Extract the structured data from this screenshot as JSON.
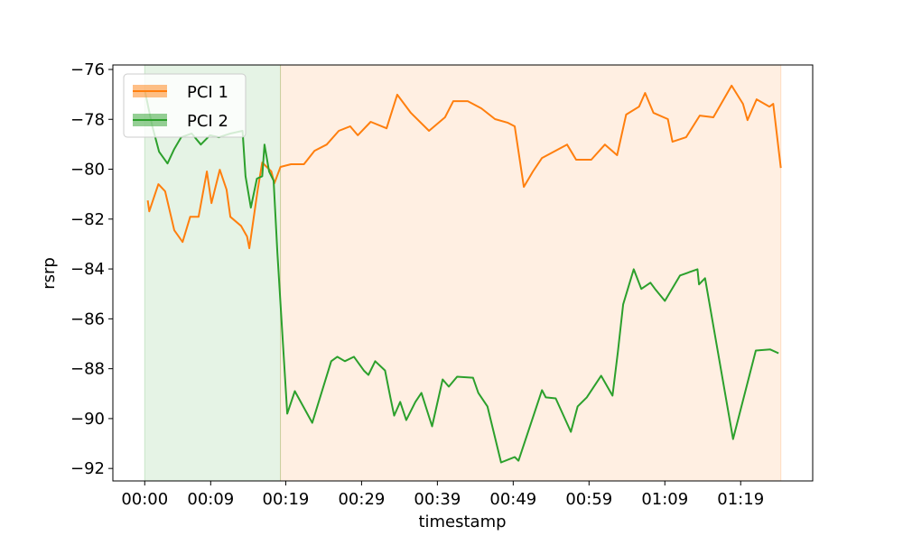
{
  "chart_data": {
    "type": "line",
    "xlabel": "timestamp",
    "ylabel": "rsrp",
    "xlim": [
      -4.2,
      88.1
    ],
    "ylim": [
      -92.5,
      -75.82
    ],
    "xticks": [
      {
        "value": 0,
        "label": "00:00"
      },
      {
        "value": 8.7,
        "label": "00:09"
      },
      {
        "value": 18.6,
        "label": "00:19"
      },
      {
        "value": 28.6,
        "label": "00:29"
      },
      {
        "value": 38.6,
        "label": "00:39"
      },
      {
        "value": 48.6,
        "label": "00:49"
      },
      {
        "value": 58.6,
        "label": "00:59"
      },
      {
        "value": 68.6,
        "label": "01:09"
      },
      {
        "value": 78.6,
        "label": "01:19"
      }
    ],
    "yticks": [
      {
        "value": -76,
        "label": "−76"
      },
      {
        "value": -78,
        "label": "−78"
      },
      {
        "value": -80,
        "label": "−80"
      },
      {
        "value": -82,
        "label": "−82"
      },
      {
        "value": -84,
        "label": "−84"
      },
      {
        "value": -86,
        "label": "−86"
      },
      {
        "value": -88,
        "label": "−88"
      },
      {
        "value": -90,
        "label": "−90"
      },
      {
        "value": -92,
        "label": "−92"
      }
    ],
    "grid": false,
    "legend": "upper left",
    "series": [
      {
        "name": "PCI 1",
        "color": "#ff7f0e",
        "span": [
          17.9,
          83.9
        ],
        "x": [
          0.4,
          0.6,
          1.8,
          2.7,
          3.9,
          5.0,
          6.0,
          7.1,
          8.2,
          8.8,
          9.9,
          10.8,
          11.3,
          12.7,
          13.5,
          13.8,
          14.9,
          15.5,
          16.7,
          17.1,
          17.9,
          19.3,
          21.0,
          22.4,
          24.0,
          25.6,
          27.1,
          28.1,
          29.8,
          31.9,
          33.3,
          35.1,
          37.5,
          39.6,
          40.7,
          42.6,
          44.4,
          46.2,
          47.9,
          48.8,
          50.0,
          51.2,
          52.4,
          55.7,
          56.9,
          58.9,
          60.7,
          62.3,
          63.5,
          65.2,
          66.0,
          67.1,
          69.0,
          69.6,
          71.4,
          73.2,
          75.0,
          77.4,
          78.9,
          79.5,
          80.7,
          82.4,
          82.9,
          83.9
        ],
        "values": [
          -81.25,
          -81.69,
          -80.6,
          -80.89,
          -82.45,
          -82.92,
          -81.91,
          -81.91,
          -80.09,
          -81.36,
          -80.02,
          -80.82,
          -81.91,
          -82.27,
          -82.7,
          -83.17,
          -80.82,
          -79.73,
          -80.09,
          -80.57,
          -79.91,
          -79.8,
          -79.8,
          -79.26,
          -79.01,
          -78.46,
          -78.28,
          -78.64,
          -78.1,
          -78.36,
          -77.01,
          -77.74,
          -78.46,
          -77.92,
          -77.27,
          -77.27,
          -77.56,
          -77.99,
          -78.14,
          -78.28,
          -80.71,
          -80.09,
          -79.55,
          -79.01,
          -79.62,
          -79.62,
          -79.01,
          -79.44,
          -77.81,
          -77.49,
          -76.94,
          -77.74,
          -77.99,
          -78.9,
          -78.72,
          -77.85,
          -77.92,
          -76.65,
          -77.38,
          -78.03,
          -77.2,
          -77.49,
          -77.38,
          -79.95
        ]
      },
      {
        "name": "PCI 2",
        "color": "#2ca02c",
        "span": [
          0,
          17.9
        ],
        "x": [
          0,
          1.0,
          1.9,
          3.0,
          3.9,
          4.8,
          6.2,
          7.4,
          8.6,
          9.8,
          11.3,
          12.9,
          13.3,
          14.0,
          14.8,
          15.5,
          15.8,
          16.4,
          17.0,
          17.5,
          18.8,
          19.8,
          22.1,
          24.6,
          25.4,
          26.4,
          27.6,
          28.9,
          29.5,
          30.4,
          31.7,
          32.4,
          32.9,
          33.7,
          34.5,
          35.7,
          36.5,
          37.9,
          39.3,
          40.1,
          41.2,
          43.3,
          44.0,
          45.2,
          47.0,
          48.8,
          49.3,
          52.4,
          52.9,
          54.2,
          56.2,
          57.1,
          58.3,
          60.2,
          61.7,
          62.4,
          63.1,
          64.5,
          65.5,
          66.7,
          67.3,
          68.6,
          70.6,
          72.9,
          73.1,
          73.9,
          77.6,
          80.6,
          82.5,
          83.6
        ],
        "values": [
          -76.83,
          -78.28,
          -79.3,
          -79.77,
          -79.19,
          -78.72,
          -78.57,
          -79.01,
          -78.64,
          -78.72,
          -78.57,
          -78.46,
          -80.28,
          -81.54,
          -80.38,
          -80.28,
          -79.01,
          -80.09,
          -80.46,
          -83.36,
          -89.8,
          -88.9,
          -90.17,
          -87.7,
          -87.52,
          -87.7,
          -87.52,
          -88.07,
          -88.25,
          -87.7,
          -88.07,
          -89.15,
          -89.88,
          -89.33,
          -90.06,
          -89.33,
          -88.97,
          -90.31,
          -88.43,
          -88.72,
          -88.32,
          -88.36,
          -88.97,
          -89.51,
          -91.76,
          -91.54,
          -91.69,
          -88.86,
          -89.15,
          -89.19,
          -90.53,
          -89.51,
          -89.15,
          -88.28,
          -89.08,
          -87.34,
          -85.42,
          -84.01,
          -84.8,
          -84.55,
          -84.8,
          -85.28,
          -84.26,
          -84.01,
          -84.62,
          -84.37,
          -90.82,
          -87.27,
          -87.23,
          -87.38
        ]
      }
    ]
  }
}
